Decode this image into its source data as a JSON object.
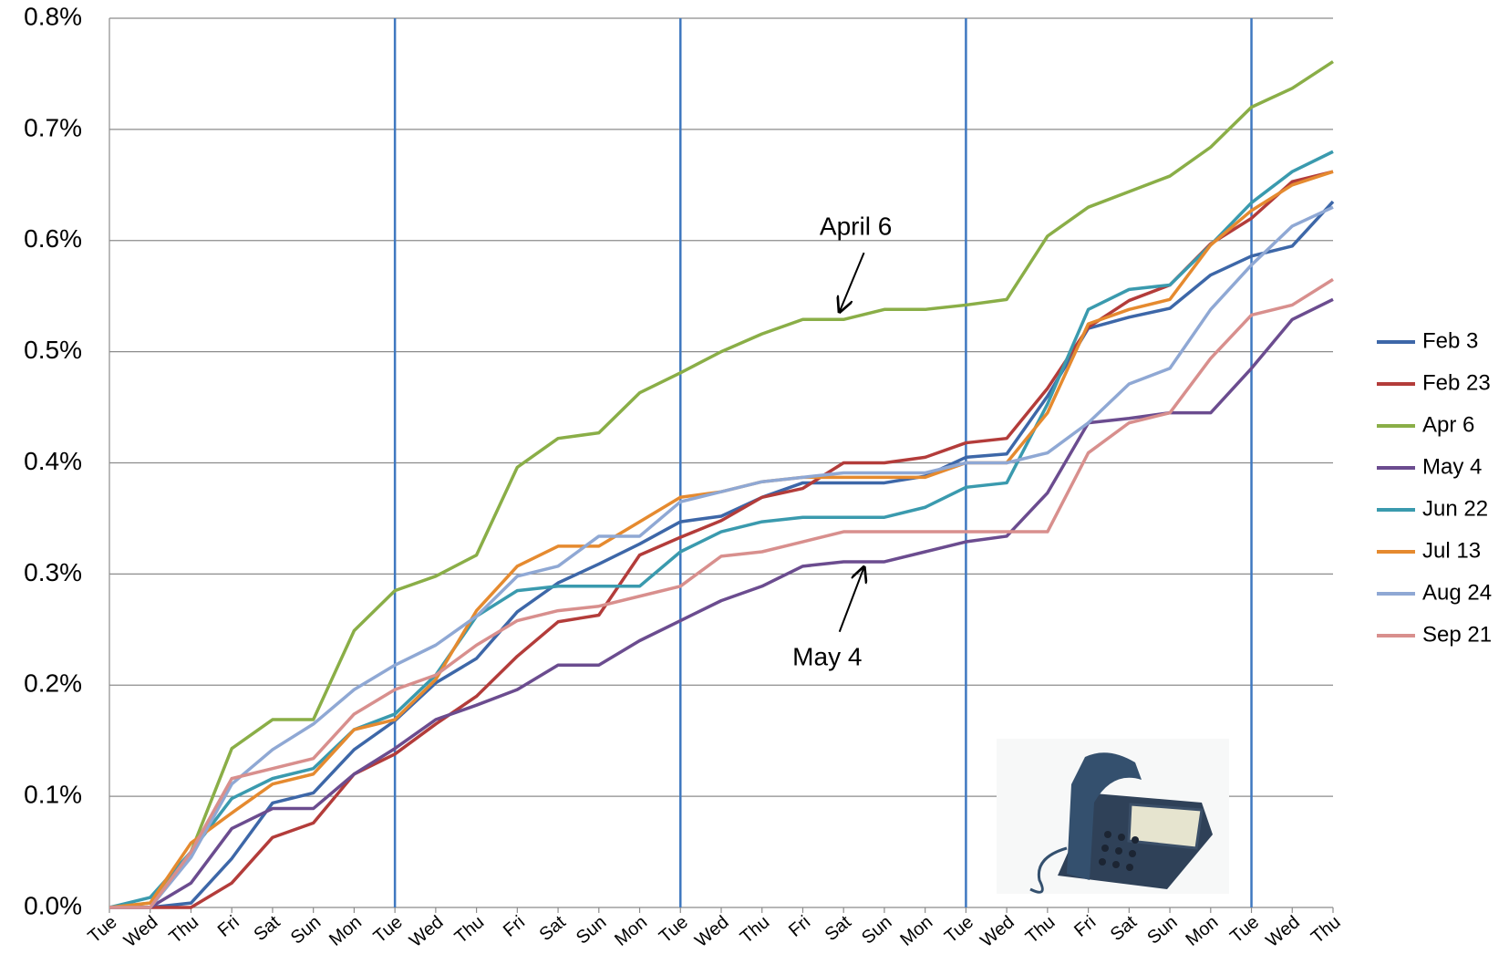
{
  "chart_data": {
    "type": "line",
    "categories": [
      "Tue",
      "Wed",
      "Thu",
      "Fri",
      "Sat",
      "Sun",
      "Mon",
      "Tue",
      "Wed",
      "Thu",
      "Fri",
      "Sat",
      "Sun",
      "Mon",
      "Tue",
      "Wed",
      "Thu",
      "Fri",
      "Sat",
      "Sun",
      "Mon",
      "Tue",
      "Wed",
      "Thu",
      "Fri",
      "Sat",
      "Sun",
      "Mon",
      "Tue",
      "Wed",
      "Thu"
    ],
    "ylim": [
      0,
      0.8
    ],
    "yticks": [
      {
        "value": 0,
        "label": "0.0%"
      },
      {
        "value": 0.1,
        "label": "0.1%"
      },
      {
        "value": 0.2,
        "label": "0.2%"
      },
      {
        "value": 0.3,
        "label": "0.3%"
      },
      {
        "value": 0.4,
        "label": "0.4%"
      },
      {
        "value": 0.5,
        "label": "0.5%"
      },
      {
        "value": 0.6,
        "label": "0.6%"
      },
      {
        "value": 0.7,
        "label": "0.7%"
      },
      {
        "value": 0.8,
        "label": "0.8%"
      }
    ],
    "grid": true,
    "legend": "right",
    "series": [
      {
        "name": "Feb 3",
        "color": "#3d67a8",
        "values": [
          0,
          0,
          0.004,
          0.044,
          0.094,
          0.103,
          0.142,
          0.168,
          0.202,
          0.224,
          0.266,
          0.292,
          0.309,
          0.327,
          0.347,
          0.352,
          0.369,
          0.382,
          0.382,
          0.382,
          0.388,
          0.405,
          0.408,
          0.46,
          0.521,
          0.531,
          0.539,
          0.569,
          0.586,
          0.595,
          0.635
        ]
      },
      {
        "name": "Feb 23",
        "color": "#b33c3a",
        "values": [
          0,
          0,
          0,
          0.022,
          0.063,
          0.076,
          0.12,
          0.138,
          0.165,
          0.19,
          0.226,
          0.257,
          0.263,
          0.317,
          0.333,
          0.348,
          0.369,
          0.377,
          0.4,
          0.4,
          0.405,
          0.418,
          0.422,
          0.467,
          0.522,
          0.546,
          0.56,
          0.597,
          0.62,
          0.653,
          0.662
        ]
      },
      {
        "name": "Apr 6",
        "color": "#8aae47",
        "values": [
          0,
          0.004,
          0.05,
          0.143,
          0.169,
          0.169,
          0.249,
          0.285,
          0.298,
          0.317,
          0.396,
          0.422,
          0.427,
          0.463,
          0.481,
          0.5,
          0.516,
          0.529,
          0.529,
          0.538,
          0.538,
          0.542,
          0.547,
          0.604,
          0.63,
          0.644,
          0.658,
          0.684,
          0.72,
          0.737,
          0.761
        ]
      },
      {
        "name": "May 4",
        "color": "#6b4c8f",
        "values": [
          0,
          0,
          0.022,
          0.071,
          0.089,
          0.089,
          0.12,
          0.143,
          0.169,
          0.182,
          0.196,
          0.218,
          0.218,
          0.24,
          0.258,
          0.276,
          0.289,
          0.307,
          0.311,
          0.311,
          0.32,
          0.329,
          0.334,
          0.373,
          0.436,
          0.44,
          0.445,
          0.445,
          0.485,
          0.529,
          0.547
        ]
      },
      {
        "name": "Jun 22",
        "color": "#3a9aae",
        "values": [
          0,
          0.009,
          0.05,
          0.098,
          0.116,
          0.125,
          0.16,
          0.174,
          0.209,
          0.262,
          0.285,
          0.289,
          0.289,
          0.289,
          0.32,
          0.338,
          0.347,
          0.351,
          0.351,
          0.351,
          0.36,
          0.378,
          0.382,
          0.453,
          0.538,
          0.556,
          0.56,
          0.596,
          0.634,
          0.662,
          0.68
        ]
      },
      {
        "name": "Jul 13",
        "color": "#e58a2f",
        "values": [
          0,
          0.004,
          0.058,
          0.085,
          0.111,
          0.12,
          0.16,
          0.169,
          0.205,
          0.267,
          0.307,
          0.325,
          0.325,
          0.347,
          0.369,
          0.374,
          0.383,
          0.387,
          0.387,
          0.387,
          0.387,
          0.4,
          0.4,
          0.445,
          0.525,
          0.538,
          0.547,
          0.596,
          0.627,
          0.65,
          0.662
        ]
      },
      {
        "name": "Aug 24",
        "color": "#8fa8d4",
        "values": [
          0,
          0,
          0.045,
          0.111,
          0.142,
          0.165,
          0.196,
          0.218,
          0.236,
          0.262,
          0.298,
          0.307,
          0.334,
          0.334,
          0.365,
          0.374,
          0.383,
          0.387,
          0.391,
          0.391,
          0.391,
          0.4,
          0.4,
          0.409,
          0.436,
          0.471,
          0.485,
          0.538,
          0.578,
          0.613,
          0.63
        ]
      },
      {
        "name": "Sep 21",
        "color": "#d88f8d",
        "values": [
          0,
          0,
          0.05,
          0.116,
          0.125,
          0.134,
          0.174,
          0.196,
          0.209,
          0.236,
          0.258,
          0.267,
          0.271,
          0.28,
          0.289,
          0.316,
          0.32,
          0.329,
          0.338,
          0.338,
          0.338,
          0.338,
          0.338,
          0.338,
          0.409,
          0.436,
          0.445,
          0.494,
          0.533,
          0.542,
          0.565
        ]
      }
    ],
    "annotations": [
      "April 6",
      "May 4"
    ]
  }
}
